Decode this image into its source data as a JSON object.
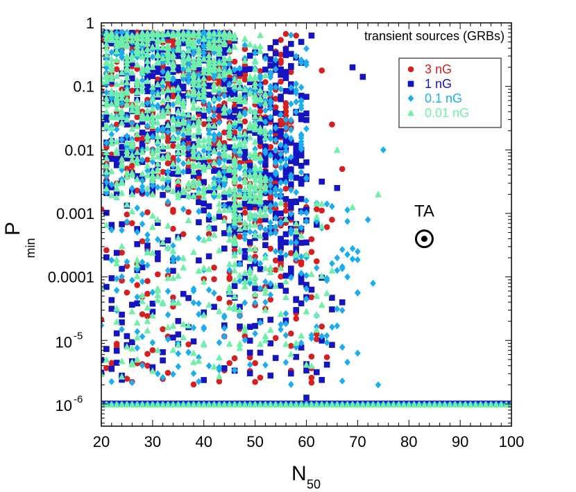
{
  "chart_data": {
    "type": "scatter",
    "title": "transient sources (GRBs)",
    "xlabel": "N",
    "xlabel_subscript": "50",
    "ylabel": "P",
    "ylabel_subscript": "min",
    "xlim": [
      20,
      100
    ],
    "ylim_log10": [
      -6.35,
      0
    ],
    "x_ticks": [
      {
        "value": 20,
        "label": "20"
      },
      {
        "value": 30,
        "label": "30"
      },
      {
        "value": 40,
        "label": "40"
      },
      {
        "value": 50,
        "label": "50"
      },
      {
        "value": 60,
        "label": "60"
      },
      {
        "value": 70,
        "label": "70"
      },
      {
        "value": 80,
        "label": "80"
      },
      {
        "value": 90,
        "label": "90"
      },
      {
        "value": 100,
        "label": "100"
      }
    ],
    "y_ticks": [
      {
        "log": 0,
        "label": "1"
      },
      {
        "log": -1,
        "label": "0.1"
      },
      {
        "log": -2,
        "label": "0.01"
      },
      {
        "log": -3,
        "label": "0.001"
      },
      {
        "log": -4,
        "label": "0.0001"
      },
      {
        "log": -5,
        "base": "10",
        "exp": "-5"
      },
      {
        "log": -6,
        "base": "10",
        "exp": "-6"
      }
    ],
    "legend_position": "top-right",
    "series": [
      {
        "name": "3 nG",
        "marker": "circle",
        "color": "#d81e1e",
        "seed": 11,
        "dense": 520,
        "cloud_xmax": 57,
        "mid": 120,
        "mid_xmax": 64,
        "floor_xmax": 100,
        "cloud_lmax": -0.02,
        "outliers": [
          [
            63,
            -0.75
          ],
          [
            65,
            -1.6
          ],
          [
            67,
            -2.3
          ],
          [
            65,
            -3.1
          ],
          [
            60,
            -2.9
          ],
          [
            62,
            -4.9
          ],
          [
            58,
            -0.2
          ]
        ]
      },
      {
        "name": "1 nG",
        "marker": "square",
        "color": "#1414c0",
        "seed": 23,
        "dense": 520,
        "cloud_xmax": 60,
        "mid": 140,
        "mid_xmax": 66,
        "floor_xmax": 100,
        "cloud_lmax": -0.02,
        "outliers": [
          [
            69,
            -0.7
          ],
          [
            71,
            -0.85
          ],
          [
            61,
            -0.2
          ],
          [
            59,
            -0.3
          ],
          [
            63,
            -2.5
          ],
          [
            66,
            -2.6
          ],
          [
            67,
            -4.4
          ],
          [
            62,
            -5.5
          ],
          [
            60,
            -5.9
          ]
        ]
      },
      {
        "name": "0.1 nG",
        "marker": "diamond",
        "color": "#1aaef0",
        "seed": 37,
        "dense": 520,
        "cloud_xmax": 60,
        "mid": 160,
        "mid_xmax": 70,
        "floor_xmax": 100,
        "cloud_lmax": -0.02,
        "outliers": [
          [
            75,
            -2.0
          ],
          [
            72,
            -3.1
          ],
          [
            70,
            -3.6
          ],
          [
            73,
            -4.1
          ],
          [
            70,
            -5.2
          ],
          [
            74,
            -5.7
          ],
          [
            66,
            -3.7
          ],
          [
            68,
            -4.0
          ]
        ]
      },
      {
        "name": "0.01 nG",
        "marker": "triangle",
        "color": "#6ef0a8",
        "seed": 53,
        "dense": 760,
        "cloud_xmax": 52,
        "mid": 160,
        "mid_xmax": 64,
        "floor_xmax": 100,
        "cloud_lmax": -0.02,
        "outliers": [
          [
            66,
            -2.0
          ],
          [
            74,
            -2.7
          ],
          [
            69,
            -2.9
          ],
          [
            63,
            -3.2
          ],
          [
            65,
            -3.9
          ],
          [
            62,
            -4.3
          ]
        ]
      }
    ],
    "annotations": [
      {
        "text": "TA",
        "x": 83,
        "log": -3.4,
        "symbol": "circled-dot"
      }
    ]
  }
}
